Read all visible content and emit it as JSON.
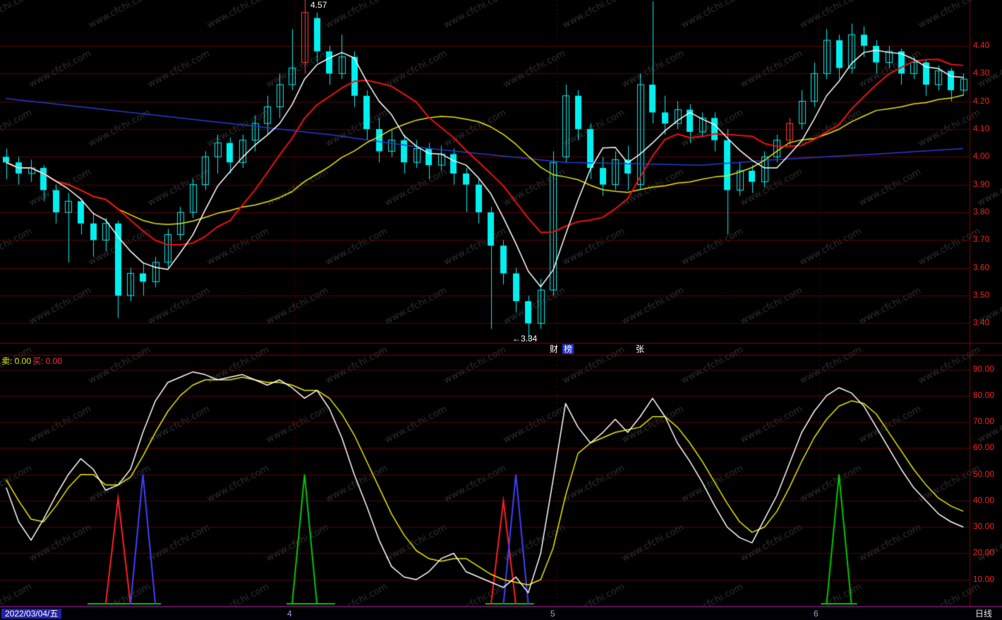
{
  "app": {
    "watermark": "www.cfchi.com",
    "status_bar": {
      "date": "2022/03/04/五",
      "period": "日线"
    },
    "colors": {
      "background": "#000000",
      "candle_cyan": "#00f0f0",
      "candle_red": "#ff4040",
      "ma_white": "#ffffff",
      "ma_yellow": "#e8e800",
      "ma_red": "#ee1111",
      "ma_blue": "#2a3ad0",
      "grid": "#5c0000",
      "axis_text": "#ee2222",
      "border": "#8b0000",
      "spike_red": "#ff2020",
      "spike_green": "#00c800",
      "spike_blue": "#4040ff",
      "watermark_text": "#a0a0a0"
    }
  },
  "annotations": {
    "high_price_label": "4.57",
    "low_price_label": "←3.34",
    "divider_labels": [
      {
        "text": "财",
        "x": 779,
        "highlight": false
      },
      {
        "text": "榜",
        "x": 797,
        "highlight": true
      },
      {
        "text": "张",
        "x": 901,
        "highlight": false
      }
    ],
    "indicator_labels": [
      {
        "text": "卖: 0.00",
        "color": "#e8e800"
      },
      {
        "text": "买: 0.00",
        "color": "#ff3232"
      }
    ]
  },
  "chart_data": [
    {
      "type": "candlestick",
      "title": "",
      "ylim": [
        3.33,
        4.565
      ],
      "y_ticks": [
        4.4,
        4.3,
        4.2,
        4.1,
        4.0,
        3.9,
        3.8,
        3.7,
        3.6,
        3.5,
        3.4
      ],
      "y_tick_labels": [
        "4.40",
        "4.30",
        "4.20",
        "4.10",
        "4.00",
        "3.90",
        "3.80",
        "3.70",
        "3.60",
        "3.50",
        "3.40"
      ],
      "high_annotation_value": 4.57,
      "low_annotation_value": 3.34,
      "month_markers": [
        {
          "x_index": 23.65,
          "label": "4"
        },
        {
          "x_index": 44.8,
          "label": "5"
        },
        {
          "x_index": 65.9,
          "label": "6"
        }
      ],
      "ma_periods": {
        "white": 5,
        "red": 10,
        "yellow": 20
      },
      "blue_line_keypoints": [
        [
          0,
          4.21
        ],
        [
          10,
          4.16
        ],
        [
          20,
          4.11
        ],
        [
          26,
          4.08
        ],
        [
          34,
          4.03
        ],
        [
          45,
          3.98
        ],
        [
          56,
          3.97
        ],
        [
          62,
          3.99
        ],
        [
          70,
          4.01
        ],
        [
          77,
          4.03
        ]
      ],
      "red_candle_indices": [
        24,
        63
      ],
      "candles": [
        [
          4.0,
          4.03,
          3.92,
          3.98
        ],
        [
          3.98,
          4.0,
          3.9,
          3.94
        ],
        [
          3.94,
          3.99,
          3.91,
          3.96
        ],
        [
          3.96,
          3.97,
          3.84,
          3.88
        ],
        [
          3.88,
          3.9,
          3.76,
          3.8
        ],
        [
          3.8,
          3.87,
          3.62,
          3.84
        ],
        [
          3.84,
          3.85,
          3.72,
          3.76
        ],
        [
          3.76,
          3.8,
          3.64,
          3.7
        ],
        [
          3.7,
          3.78,
          3.66,
          3.76
        ],
        [
          3.76,
          3.77,
          3.42,
          3.5
        ],
        [
          3.5,
          3.6,
          3.48,
          3.58
        ],
        [
          3.58,
          3.62,
          3.5,
          3.55
        ],
        [
          3.55,
          3.64,
          3.53,
          3.62
        ],
        [
          3.62,
          3.74,
          3.6,
          3.72
        ],
        [
          3.72,
          3.82,
          3.7,
          3.8
        ],
        [
          3.8,
          3.92,
          3.78,
          3.9
        ],
        [
          3.9,
          4.02,
          3.88,
          4.0
        ],
        [
          4.0,
          4.08,
          3.94,
          4.05
        ],
        [
          4.05,
          4.07,
          3.94,
          3.98
        ],
        [
          3.98,
          4.08,
          3.96,
          4.06
        ],
        [
          4.06,
          4.15,
          4.02,
          4.12
        ],
        [
          4.12,
          4.22,
          4.08,
          4.18
        ],
        [
          4.18,
          4.3,
          4.14,
          4.26
        ],
        [
          4.26,
          4.46,
          4.24,
          4.32
        ],
        [
          4.34,
          4.57,
          4.3,
          4.52
        ],
        [
          4.5,
          4.52,
          4.34,
          4.38
        ],
        [
          4.38,
          4.4,
          4.26,
          4.3
        ],
        [
          4.3,
          4.44,
          4.28,
          4.36
        ],
        [
          4.36,
          4.38,
          4.18,
          4.22
        ],
        [
          4.22,
          4.24,
          4.06,
          4.1
        ],
        [
          4.1,
          4.14,
          3.98,
          4.02
        ],
        [
          4.02,
          4.1,
          4.0,
          4.06
        ],
        [
          4.06,
          4.08,
          3.94,
          3.98
        ],
        [
          3.98,
          4.06,
          3.96,
          4.03
        ],
        [
          4.03,
          4.05,
          3.92,
          3.97
        ],
        [
          3.97,
          4.04,
          3.95,
          4.01
        ],
        [
          4.01,
          4.03,
          3.9,
          3.94
        ],
        [
          3.94,
          3.96,
          3.8,
          3.9
        ],
        [
          3.9,
          3.92,
          3.76,
          3.8
        ],
        [
          3.8,
          3.82,
          3.38,
          3.68
        ],
        [
          3.68,
          3.7,
          3.54,
          3.58
        ],
        [
          3.58,
          3.6,
          3.44,
          3.48
        ],
        [
          3.48,
          3.5,
          3.34,
          3.4
        ],
        [
          3.4,
          3.56,
          3.38,
          3.52
        ],
        [
          3.52,
          4.02,
          3.5,
          3.98
        ],
        [
          4.0,
          4.26,
          3.98,
          4.22
        ],
        [
          4.22,
          4.24,
          4.06,
          4.1
        ],
        [
          4.1,
          4.12,
          3.92,
          3.96
        ],
        [
          3.96,
          4.0,
          3.86,
          3.9
        ],
        [
          3.9,
          4.02,
          3.88,
          3.99
        ],
        [
          3.99,
          4.04,
          3.88,
          3.94
        ],
        [
          3.9,
          4.3,
          3.88,
          4.26
        ],
        [
          4.26,
          4.56,
          4.12,
          4.16
        ],
        [
          4.16,
          4.22,
          4.08,
          4.12
        ],
        [
          4.12,
          4.2,
          4.1,
          4.17
        ],
        [
          4.17,
          4.19,
          4.05,
          4.09
        ],
        [
          4.09,
          4.16,
          4.07,
          4.14
        ],
        [
          4.14,
          4.16,
          4.02,
          4.06
        ],
        [
          4.06,
          4.1,
          3.72,
          3.88
        ],
        [
          3.88,
          3.98,
          3.86,
          3.95
        ],
        [
          3.95,
          3.97,
          3.87,
          3.91
        ],
        [
          3.91,
          4.02,
          3.89,
          4.0
        ],
        [
          4.0,
          4.08,
          3.98,
          4.06
        ],
        [
          4.06,
          4.14,
          4.04,
          4.12
        ],
        [
          4.12,
          4.24,
          4.1,
          4.2
        ],
        [
          4.2,
          4.34,
          4.18,
          4.3
        ],
        [
          4.3,
          4.46,
          4.28,
          4.42
        ],
        [
          4.42,
          4.44,
          4.28,
          4.32
        ],
        [
          4.32,
          4.48,
          4.3,
          4.44
        ],
        [
          4.44,
          4.47,
          4.36,
          4.4
        ],
        [
          4.4,
          4.42,
          4.3,
          4.34
        ],
        [
          4.34,
          4.4,
          4.32,
          4.38
        ],
        [
          4.38,
          4.39,
          4.26,
          4.3
        ],
        [
          4.3,
          4.36,
          4.28,
          4.34
        ],
        [
          4.34,
          4.35,
          4.22,
          4.26
        ],
        [
          4.26,
          4.33,
          4.24,
          4.31
        ],
        [
          4.31,
          4.32,
          4.2,
          4.24
        ],
        [
          4.24,
          4.3,
          4.22,
          4.28
        ]
      ]
    },
    {
      "type": "line",
      "title": "",
      "ylim": [
        0,
        95
      ],
      "y_ticks": [
        90,
        80,
        70,
        60,
        50,
        40,
        30,
        20,
        10
      ],
      "y_tick_labels": [
        "90.00",
        "80.00",
        "70.00",
        "60.00",
        "50.00",
        "40.00",
        "30.00",
        "20.00",
        "10.00"
      ],
      "series": [
        {
          "name": "white",
          "color": "#ffffff",
          "values": [
            45,
            32,
            25,
            33,
            42,
            50,
            56,
            52,
            44,
            46,
            52,
            66,
            78,
            85,
            87,
            89,
            88,
            86,
            87,
            88,
            86,
            84,
            86,
            83,
            79,
            82,
            75,
            64,
            50,
            38,
            25,
            15,
            11,
            10,
            13,
            18,
            20,
            13,
            11,
            9,
            7,
            11,
            5,
            20,
            48,
            77,
            68,
            62,
            66,
            71,
            66,
            72,
            79,
            72,
            62,
            55,
            47,
            38,
            30,
            26,
            24,
            33,
            42,
            54,
            66,
            74,
            80,
            83,
            81,
            76,
            68,
            60,
            52,
            45,
            40,
            35,
            32,
            30
          ]
        },
        {
          "name": "yellow",
          "color": "#e8e800",
          "values": [
            48,
            40,
            33,
            32,
            38,
            45,
            50,
            50,
            46,
            46,
            49,
            57,
            66,
            74,
            80,
            84,
            86,
            86,
            86,
            87,
            86,
            85,
            85,
            84,
            82,
            82,
            79,
            73,
            65,
            55,
            45,
            35,
            27,
            21,
            18,
            17,
            18,
            18,
            15,
            12,
            10,
            9,
            8,
            10,
            22,
            42,
            58,
            62,
            64,
            66,
            67,
            68,
            72,
            72,
            68,
            62,
            55,
            47,
            39,
            32,
            28,
            30,
            36,
            45,
            55,
            64,
            71,
            76,
            78,
            77,
            73,
            66,
            59,
            52,
            46,
            41,
            38,
            36
          ]
        }
      ],
      "spikes": {
        "red": [
          {
            "i": 9,
            "v": 41
          },
          {
            "i": 40,
            "v": 40
          }
        ],
        "blue": [
          {
            "i": 11,
            "v": 50
          },
          {
            "i": 41,
            "v": 50
          }
        ],
        "green": [
          {
            "i": 24,
            "v": 50
          },
          {
            "i": 67,
            "v": 50
          }
        ]
      },
      "green_base_segments": [
        [
          7,
          12
        ],
        [
          23,
          26
        ],
        [
          39,
          42
        ],
        [
          66,
          68
        ]
      ]
    }
  ]
}
